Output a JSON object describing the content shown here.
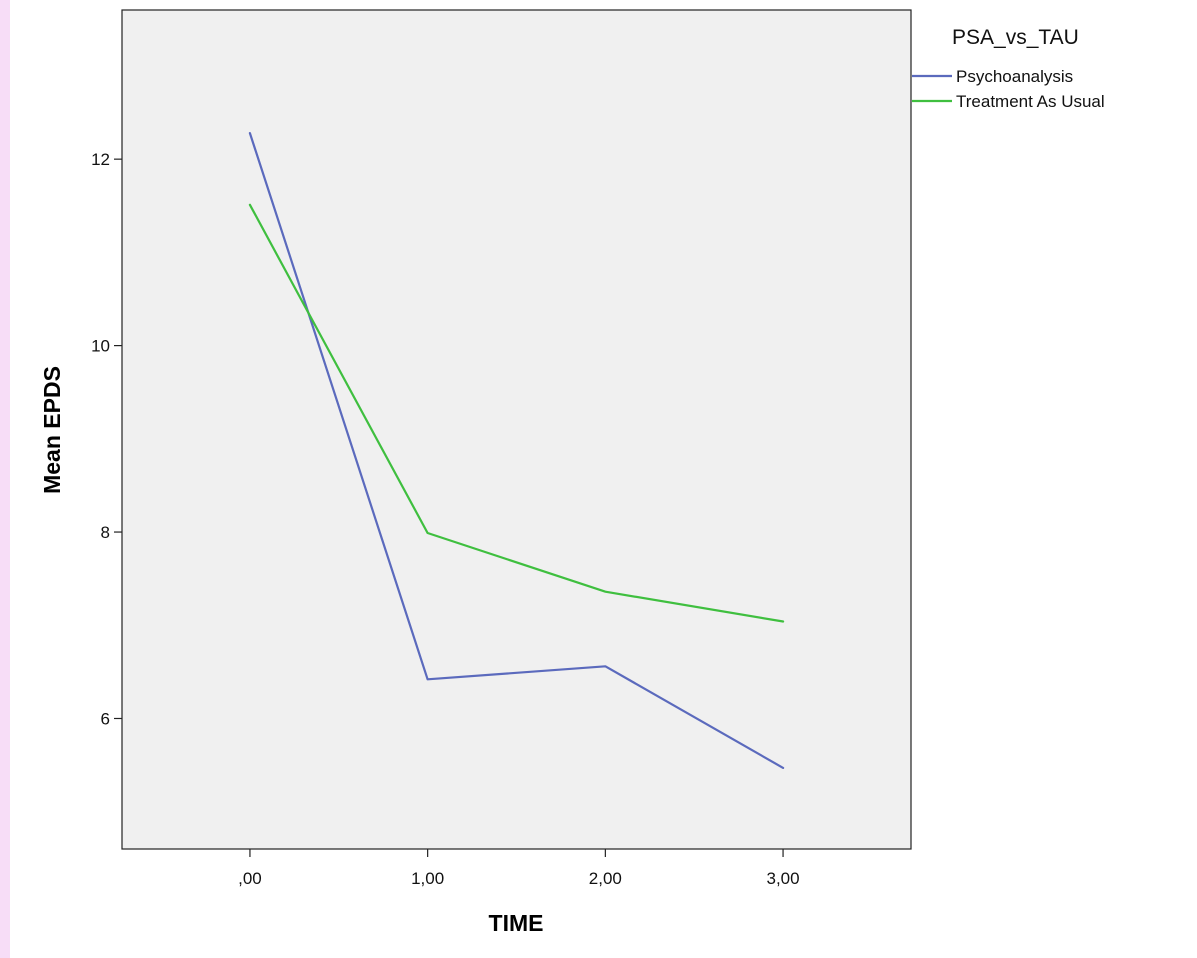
{
  "chart_data": {
    "type": "line",
    "xlabel": "TIME",
    "ylabel": "Mean EPDS",
    "x": [
      0,
      1,
      2,
      3
    ],
    "x_tick_labels": [
      ",00",
      "1,00",
      "2,00",
      "3,00"
    ],
    "xlim": [
      -0.72,
      3.72
    ],
    "ylim": [
      4.6,
      13.6
    ],
    "y_ticks": [
      6,
      8,
      10,
      12
    ],
    "grid": false,
    "legend_title": "PSA_vs_TAU",
    "legend_placement": "right",
    "series": [
      {
        "name": "Psychoanalysis",
        "color": "#5b6abd",
        "values": [
          12.28,
          6.42,
          6.56,
          5.47
        ]
      },
      {
        "name": "Treatment As Usual",
        "color": "#3fbf3f",
        "values": [
          11.51,
          7.99,
          7.36,
          7.04
        ]
      }
    ],
    "plot_background": "#f0f0f0"
  }
}
